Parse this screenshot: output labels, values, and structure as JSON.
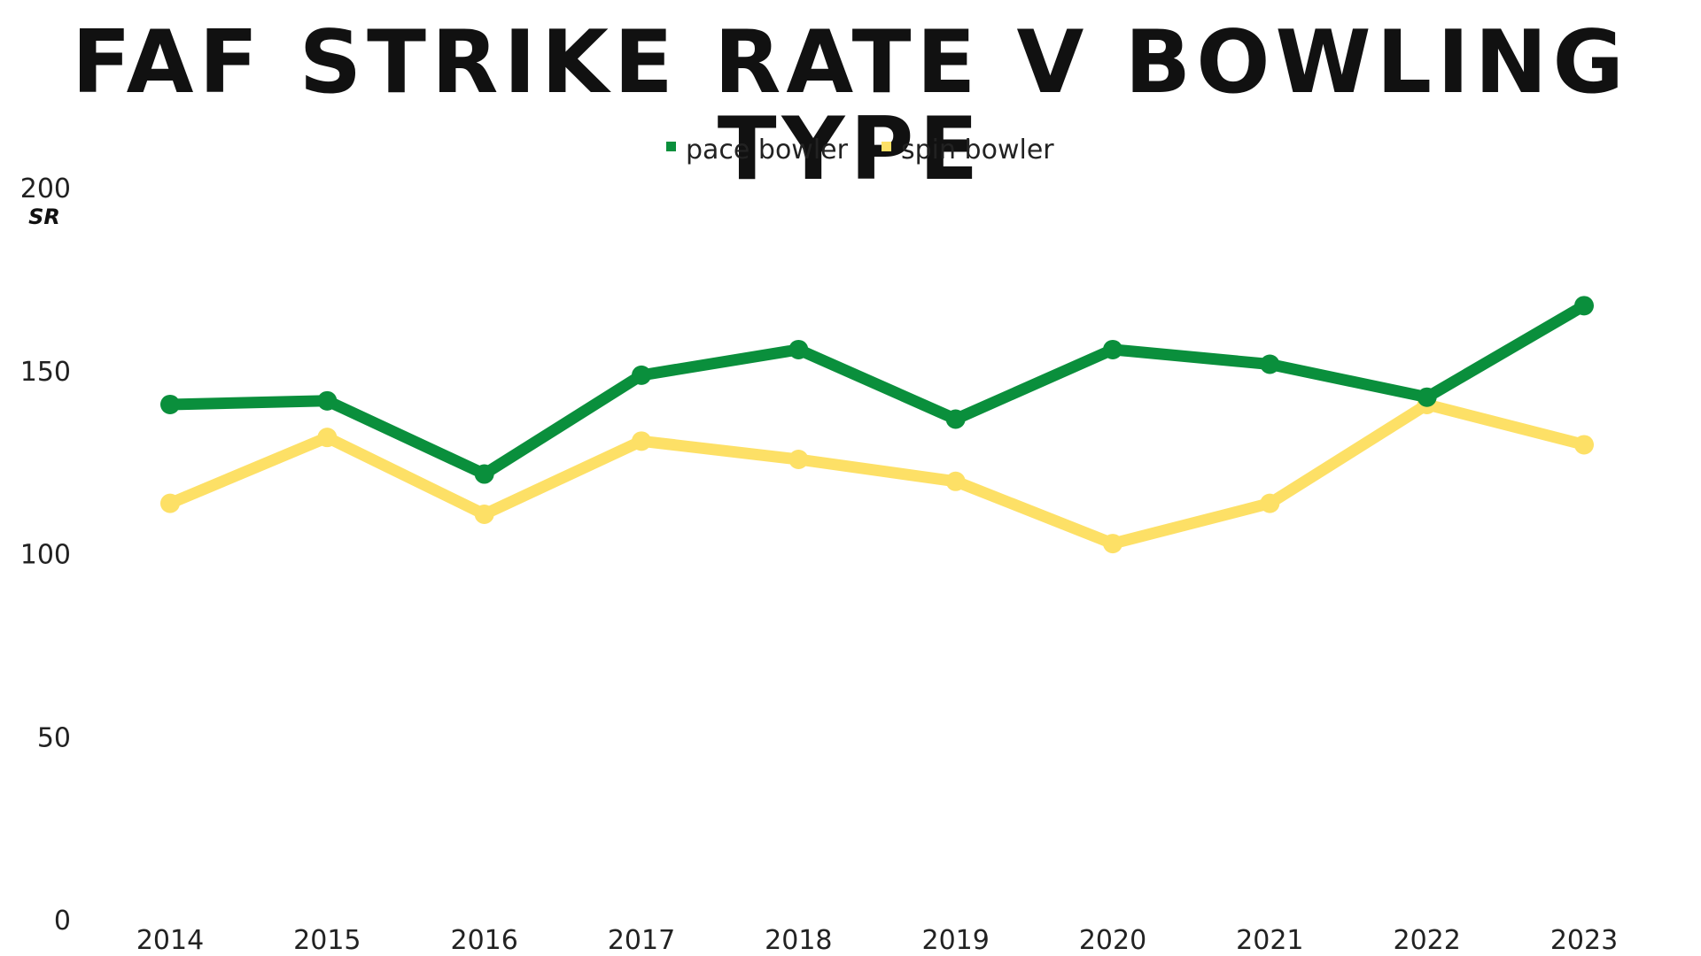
{
  "chart_data": {
    "type": "line",
    "title": "FAF STRIKE RATE V BOWLING TYPE",
    "ylabel": "SR",
    "xlabel": "",
    "ylim": [
      0,
      200
    ],
    "yticks": [
      0,
      50,
      100,
      150,
      200
    ],
    "categories": [
      "2014",
      "2015",
      "2016",
      "2017",
      "2018",
      "2019",
      "2020",
      "2021",
      "2022",
      "2023"
    ],
    "series": [
      {
        "name": "pace bowler",
        "color": "#0a8f3c",
        "values": [
          141,
          142,
          122,
          149,
          156,
          137,
          156,
          152,
          143,
          168
        ]
      },
      {
        "name": "spin bowler",
        "color": "#fde066",
        "values": [
          114,
          132,
          111,
          131,
          126,
          120,
          103,
          114,
          141,
          130
        ]
      }
    ],
    "legend_position": "top-center",
    "grid": false
  }
}
